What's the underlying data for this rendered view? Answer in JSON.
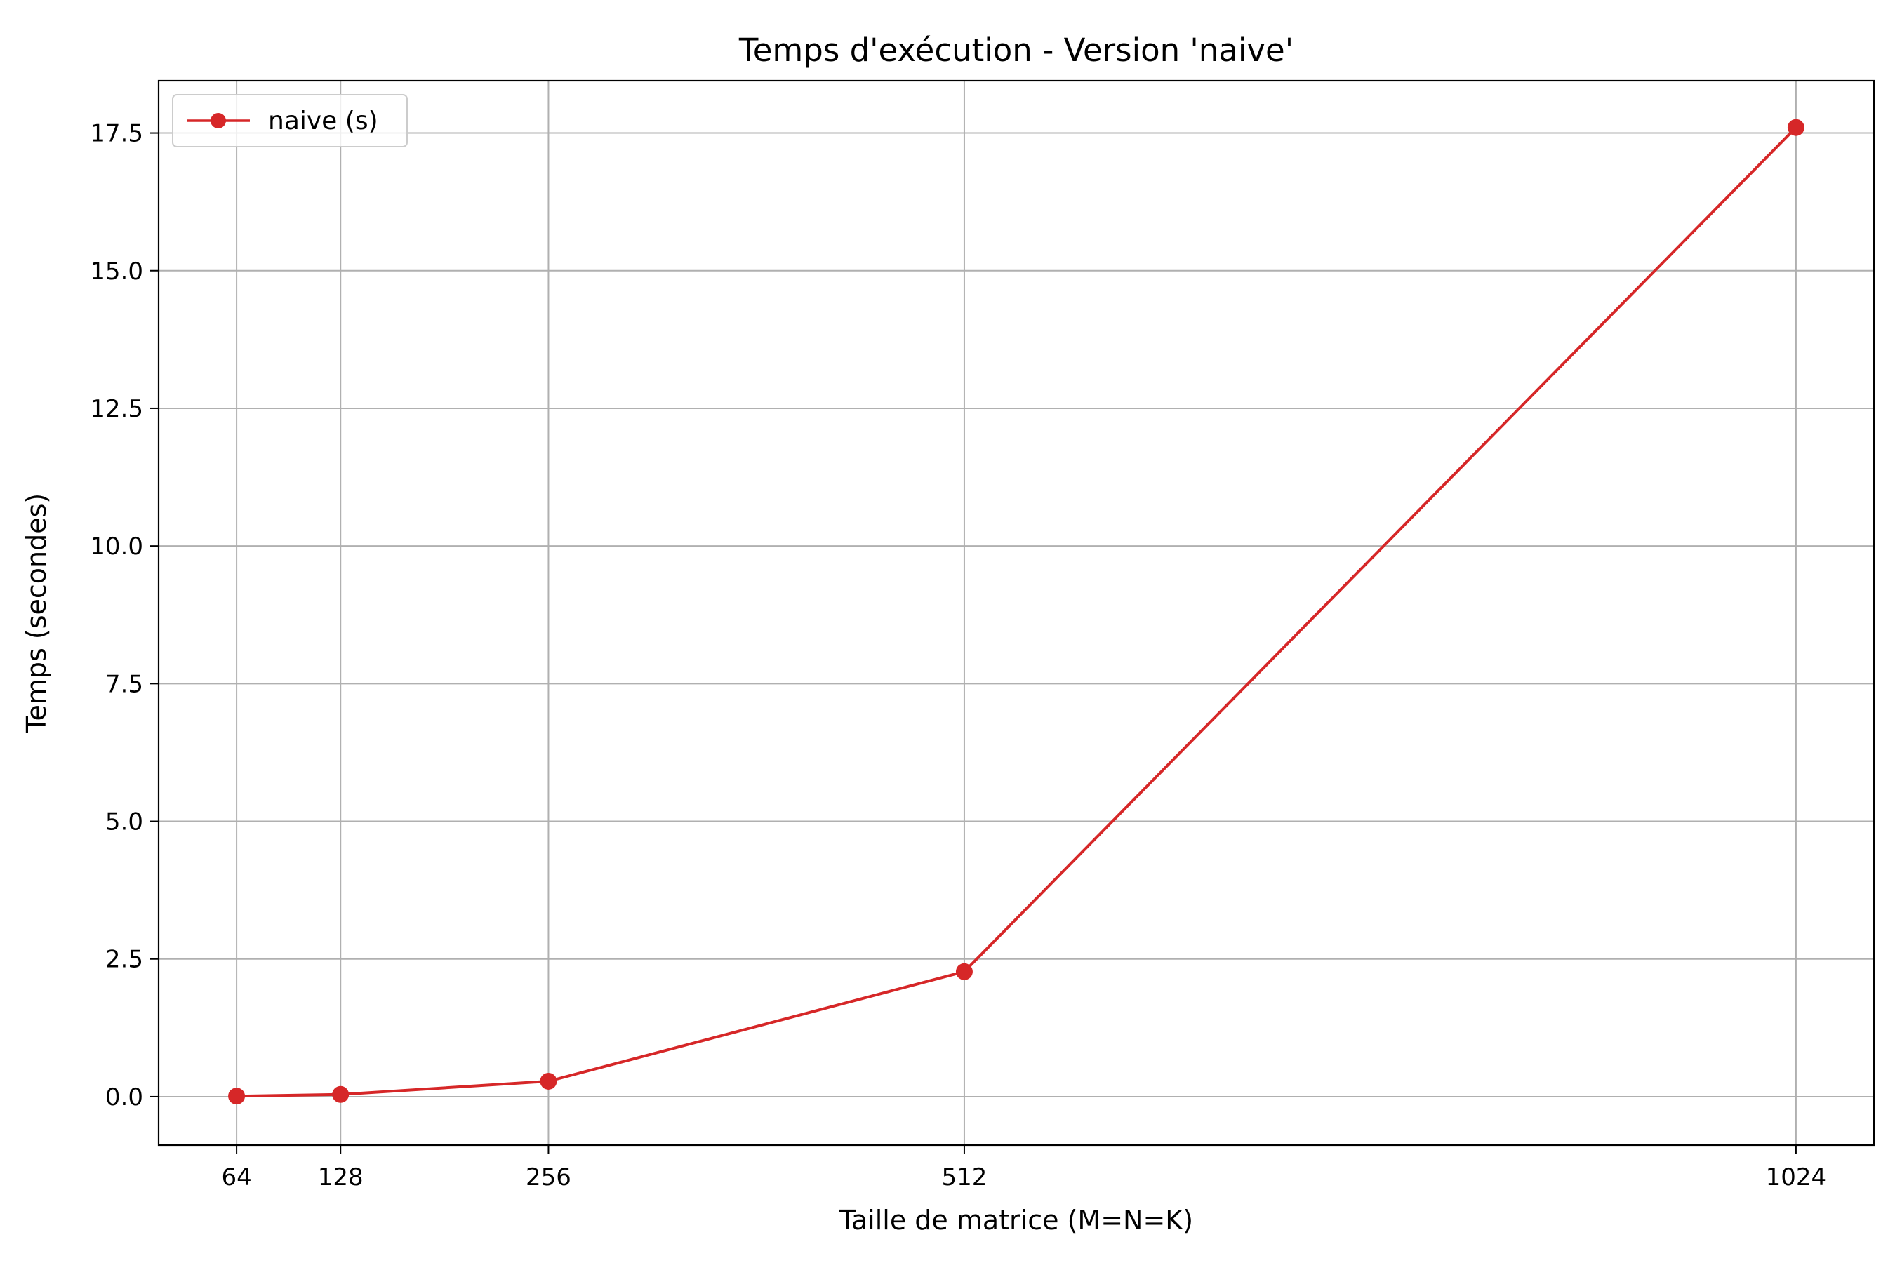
{
  "chart_data": {
    "type": "line",
    "title": "Temps d'exécution - Version 'naive'",
    "xlabel": "Taille de matrice (M=N=K)",
    "ylabel": "Temps (secondes)",
    "x": [
      64,
      128,
      256,
      512,
      1024
    ],
    "x_tick_labels": [
      "64",
      "128",
      "256",
      "512",
      "1024"
    ],
    "xlim": [
      16,
      1072
    ],
    "ylim": [
      -0.88,
      18.45
    ],
    "y_ticks": [
      0.0,
      2.5,
      5.0,
      7.5,
      10.0,
      12.5,
      15.0,
      17.5
    ],
    "y_tick_labels": [
      "0.0",
      "2.5",
      "5.0",
      "7.5",
      "10.0",
      "12.5",
      "15.0",
      "17.5"
    ],
    "grid": true,
    "legend_position": "top-left",
    "series": [
      {
        "name": "naive (s)",
        "color": "#d62728",
        "marker": "circle",
        "values": [
          0.01,
          0.04,
          0.28,
          2.27,
          17.6
        ]
      }
    ]
  }
}
